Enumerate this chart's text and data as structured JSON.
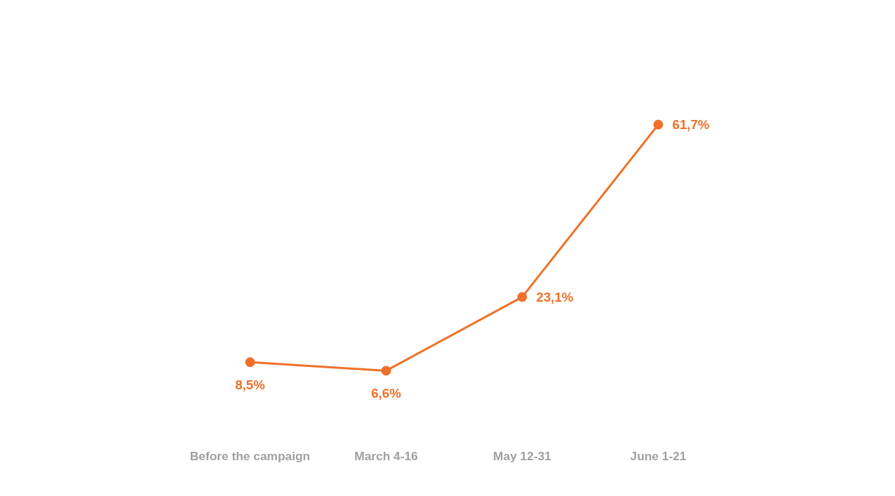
{
  "chart_data": {
    "type": "line",
    "categories": [
      "Before the campaign",
      "March 4-16",
      "May 12-31",
      "June 1-21"
    ],
    "series": [
      {
        "color": "#f07029",
        "values": [
          8.5,
          6.6,
          23.1,
          61.7
        ],
        "value_labels": [
          "8,5%",
          "6,6%",
          "23,1%",
          "61,7%"
        ]
      }
    ],
    "marker": "circle",
    "line_style": "solid"
  }
}
